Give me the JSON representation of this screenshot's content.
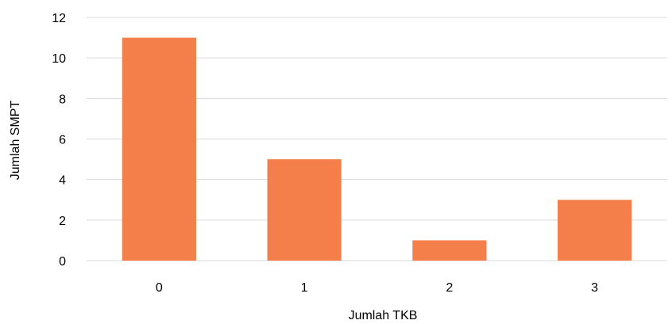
{
  "chart_data": {
    "type": "bar",
    "categories": [
      "0",
      "1",
      "2",
      "3"
    ],
    "values": [
      11,
      5,
      1,
      3
    ],
    "title": "",
    "xlabel": "Jumlah TKB",
    "ylabel": "Jumlah SMPT",
    "ylim": [
      0,
      12
    ],
    "yticks": [
      "0",
      "2",
      "4",
      "6",
      "8",
      "10",
      "12"
    ],
    "grid": true,
    "legend": "none",
    "colors": {
      "bar": "#F47F4A",
      "grid": "#D9D9D9"
    }
  }
}
